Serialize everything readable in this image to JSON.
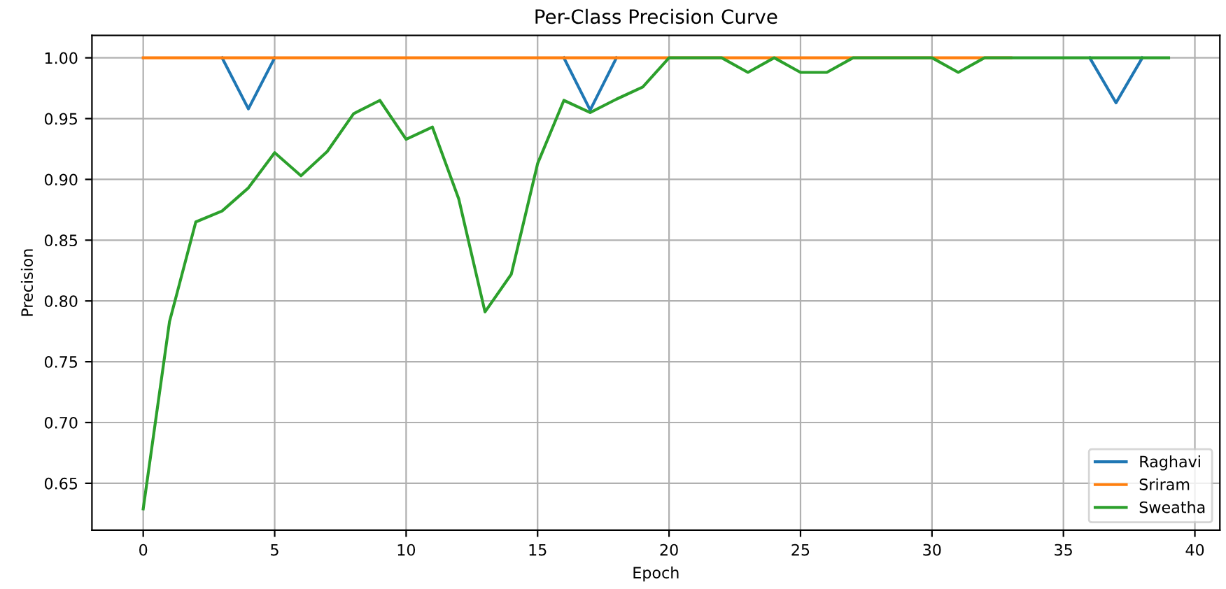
{
  "chart_data": {
    "type": "line",
    "title": "Per-Class Precision Curve",
    "xlabel": "Epoch",
    "ylabel": "Precision",
    "x": [
      0,
      1,
      2,
      3,
      4,
      5,
      6,
      7,
      8,
      9,
      10,
      11,
      12,
      13,
      14,
      15,
      16,
      17,
      18,
      19,
      20,
      21,
      22,
      23,
      24,
      25,
      26,
      27,
      28,
      29,
      30,
      31,
      32,
      33,
      34,
      35,
      36,
      37,
      38,
      39
    ],
    "series": [
      {
        "name": "Raghavi",
        "color": "#1f77b4",
        "values": [
          null,
          null,
          null,
          1,
          0.958,
          1,
          null,
          null,
          null,
          null,
          null,
          null,
          null,
          null,
          null,
          null,
          1,
          0.957,
          1,
          null,
          null,
          null,
          null,
          null,
          null,
          null,
          null,
          null,
          null,
          null,
          null,
          null,
          null,
          null,
          null,
          null,
          1,
          0.963,
          1,
          null
        ]
      },
      {
        "name": "Sriram",
        "color": "#ff7f0e",
        "values": [
          1,
          1,
          1,
          1,
          1,
          1,
          1,
          1,
          1,
          1,
          1,
          1,
          1,
          1,
          1,
          1,
          1,
          1,
          1,
          1,
          1,
          1,
          1,
          1,
          1,
          1,
          1,
          1,
          1,
          1,
          1,
          1,
          1,
          1,
          null,
          null,
          null,
          null,
          null,
          null
        ]
      },
      {
        "name": "Sweatha",
        "color": "#2ca02c",
        "values": [
          0.629,
          0.783,
          0.865,
          0.874,
          0.893,
          0.922,
          0.903,
          0.923,
          0.954,
          0.965,
          0.933,
          0.943,
          0.884,
          0.791,
          0.822,
          0.913,
          0.965,
          0.955,
          0.966,
          0.976,
          1,
          1,
          1,
          0.988,
          1,
          0.988,
          0.988,
          1,
          1,
          1,
          1,
          0.988,
          1,
          1,
          1,
          1,
          1,
          1,
          1,
          1
        ]
      }
    ],
    "xlim": [
      -1.95,
      40.95
    ],
    "ylim": [
      0.6115,
      1.0185
    ],
    "xticks": [
      0,
      5,
      10,
      15,
      20,
      25,
      30,
      35,
      40
    ],
    "yticks": [
      {
        "value": 0.65,
        "label": "0.65"
      },
      {
        "value": 0.7,
        "label": "0.70"
      },
      {
        "value": 0.75,
        "label": "0.75"
      },
      {
        "value": 0.8,
        "label": "0.80"
      },
      {
        "value": 0.85,
        "label": "0.85"
      },
      {
        "value": 0.9,
        "label": "0.90"
      },
      {
        "value": 0.95,
        "label": "0.95"
      },
      {
        "value": 1.0,
        "label": "1.00"
      }
    ],
    "grid": true,
    "legend": "bottom right",
    "marker": "none",
    "line_style": "solid"
  }
}
